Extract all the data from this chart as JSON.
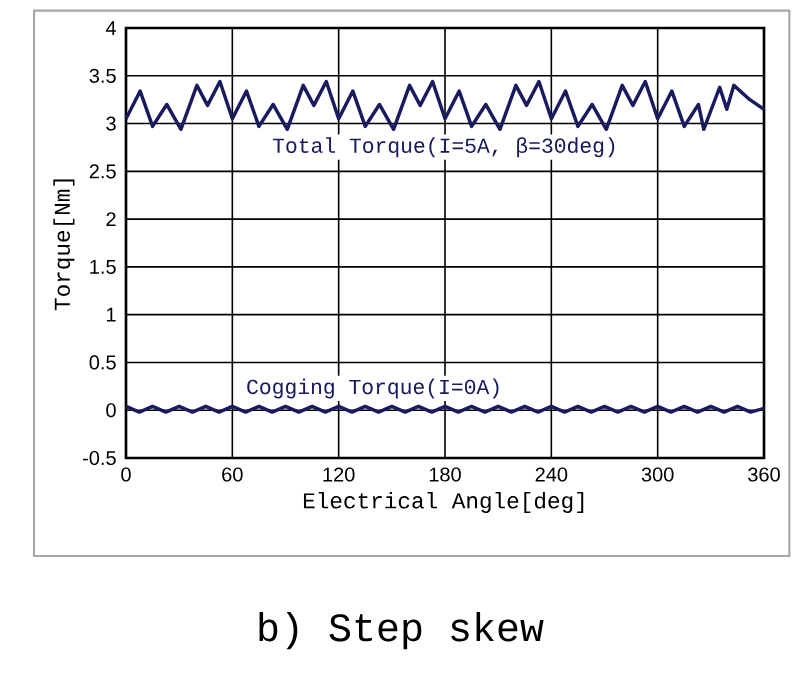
{
  "chart_data": {
    "type": "line",
    "title": "b) Step skew",
    "xlabel": "Electrical Angle[deg]",
    "ylabel": "Torque[Nm]",
    "xlim": [
      0,
      360
    ],
    "ylim": [
      -0.5,
      4
    ],
    "xticks": [
      0,
      60,
      120,
      180,
      240,
      300,
      360
    ],
    "yticks": [
      -0.5,
      0,
      0.5,
      1,
      1.5,
      2,
      2.5,
      3,
      3.5,
      4
    ],
    "grid": true,
    "marker": "none",
    "line_style": "solid",
    "series": [
      {
        "name": "Total Torque(I=5A, β=30deg)",
        "color": "#1a1a5e",
        "x": [
          0,
          8,
          15,
          23,
          31,
          40,
          46,
          53,
          60,
          68,
          75,
          83,
          91,
          100,
          106,
          113,
          120,
          128,
          135,
          143,
          151,
          160,
          166,
          173,
          180,
          188,
          195,
          203,
          211,
          220,
          226,
          233,
          240,
          248,
          255,
          263,
          271,
          280,
          286,
          293,
          300,
          308,
          315,
          323,
          326,
          335,
          339,
          343,
          352,
          360
        ],
        "values": [
          3.05,
          3.34,
          2.97,
          3.2,
          2.94,
          3.4,
          3.19,
          3.44,
          3.05,
          3.34,
          2.97,
          3.2,
          2.94,
          3.4,
          3.19,
          3.44,
          3.05,
          3.34,
          2.97,
          3.2,
          2.94,
          3.4,
          3.19,
          3.44,
          3.05,
          3.34,
          2.97,
          3.2,
          2.94,
          3.4,
          3.19,
          3.44,
          3.05,
          3.34,
          2.97,
          3.2,
          2.94,
          3.4,
          3.19,
          3.44,
          3.05,
          3.34,
          2.97,
          3.2,
          2.94,
          3.38,
          3.15,
          3.4,
          3.25,
          3.15
        ]
      },
      {
        "name": "Cogging Torque(I=0A)",
        "color": "#1a1a5e",
        "x": [
          0,
          7.5,
          15,
          22.5,
          30,
          37.5,
          45,
          52.5,
          60,
          67.5,
          75,
          82.5,
          90,
          97.5,
          105,
          112.5,
          120,
          127.5,
          135,
          142.5,
          150,
          157.5,
          165,
          172.5,
          180,
          187.5,
          195,
          202.5,
          210,
          217.5,
          225,
          232.5,
          240,
          247.5,
          255,
          262.5,
          270,
          277.5,
          285,
          292.5,
          300,
          307.5,
          315,
          322.5,
          330,
          337.5,
          345,
          352.5,
          360
        ],
        "values": [
          0.04,
          -0.02,
          0.04,
          -0.02,
          0.04,
          -0.02,
          0.04,
          -0.02,
          0.04,
          -0.02,
          0.04,
          -0.02,
          0.04,
          -0.02,
          0.04,
          -0.02,
          0.04,
          -0.02,
          0.04,
          -0.02,
          0.04,
          -0.02,
          0.04,
          -0.02,
          0.04,
          -0.02,
          0.04,
          -0.02,
          0.04,
          -0.02,
          0.04,
          -0.02,
          0.04,
          -0.02,
          0.04,
          -0.02,
          0.04,
          -0.02,
          0.04,
          -0.02,
          0.04,
          -0.02,
          0.04,
          -0.02,
          0.04,
          -0.02,
          0.04,
          -0.02,
          0.02
        ]
      }
    ]
  }
}
